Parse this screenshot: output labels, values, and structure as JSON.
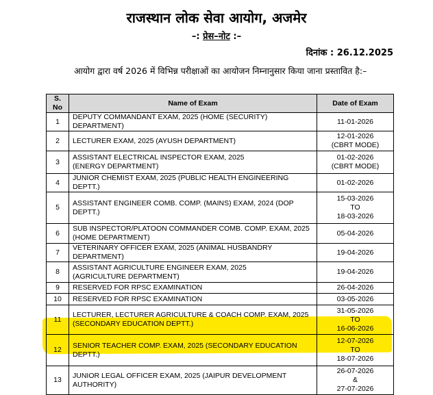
{
  "header": {
    "title": "राजस्थान लोक सेवा आयोग, अजमेर",
    "subtitle_prefix": "–: ",
    "subtitle": "प्रेस–नोट",
    "subtitle_suffix": " :–",
    "date_label": "दिनांक : ",
    "date": "26.12.2025"
  },
  "intro": "आयोग द्वारा वर्ष 2026 में विभिन्न परीक्षाओं का आयोजन निम्नानुसार किया जाना प्रस्तावित है:–",
  "highlight_color": "#ffe800",
  "table": {
    "headers": [
      "S. No",
      "Name of Exam",
      "Date of Exam"
    ],
    "rows": [
      {
        "sno": "1",
        "name": [
          "DEPUTY COMMANDANT EXAM, 2025 (HOME (SECURITY) DEPARTMENT)"
        ],
        "date": [
          "11-01-2026"
        ]
      },
      {
        "sno": "2",
        "name": [
          "LECTURER  EXAM, 2025 (AYUSH DEPARTMENT)"
        ],
        "date": [
          "12-01-2026",
          "(CBRT MODE)"
        ]
      },
      {
        "sno": "3",
        "name": [
          "ASSISTANT ELECTRICAL INSPECTOR  EXAM, 2025",
          "(ENERGY DEPARTMENT)"
        ],
        "date": [
          "01-02-2026",
          "(CBRT MODE)"
        ]
      },
      {
        "sno": "4",
        "name": [
          "JUNIOR CHEMIST EXAM, 2025 (PUBLIC HEALTH ENGINEERING DEPTT.)"
        ],
        "date": [
          "01-02-2026"
        ]
      },
      {
        "sno": "5",
        "name": [
          "ASSISTANT ENGINEER COMB. COMP. (MAINS) EXAM, 2024 (DOP DEPTT.)"
        ],
        "date": [
          "15-03-2026",
          "TO",
          "18-03-2026"
        ]
      },
      {
        "sno": "6",
        "name": [
          "SUB INSPECTOR/PLATOON COMMANDER COMB. COMP. EXAM, 2025",
          "(HOME DEPARTMENT)"
        ],
        "date": [
          "05-04-2026"
        ]
      },
      {
        "sno": "7",
        "name": [
          "VETERINARY OFFICER EXAM, 2025 (ANIMAL HUSBANDRY DEPARTMENT)"
        ],
        "date": [
          "19-04-2026"
        ]
      },
      {
        "sno": "8",
        "name": [
          "ASSISTANT AGRICULTURE ENGINEER EXAM, 2025",
          "(AGRICULTURE DEPARTMENT)"
        ],
        "date": [
          "19-04-2026"
        ]
      },
      {
        "sno": "9",
        "name": [
          "RESERVED FOR RPSC EXAMINATION"
        ],
        "date": [
          "26-04-2026"
        ]
      },
      {
        "sno": "10",
        "name": [
          "RESERVED FOR RPSC EXAMINATION"
        ],
        "date": [
          "03-05-2026"
        ]
      },
      {
        "sno": "11",
        "name": [
          "LECTURER, LECTURER AGRICULTURE & COACH  COMP. EXAM, 2025",
          "(SECONDARY EDUCATION DEPTT.)"
        ],
        "date": [
          "31-05-2026",
          "TO",
          "16-06-2026"
        ]
      },
      {
        "sno": "12",
        "name": [
          "SENIOR TEACHER COMP. EXAM, 2025 (SECONDARY EDUCATION DEPTT.)"
        ],
        "date": [
          "12-07-2026",
          "TO",
          "18-07-2026"
        ],
        "highlighted": true
      },
      {
        "sno": "13",
        "name": [
          "JUNIOR LEGAL OFFICER EXAM, 2025 (JAIPUR DEVELOPMENT AUTHORITY)"
        ],
        "date": [
          "26-07-2026",
          "&",
          "27-07-2026"
        ]
      }
    ]
  }
}
